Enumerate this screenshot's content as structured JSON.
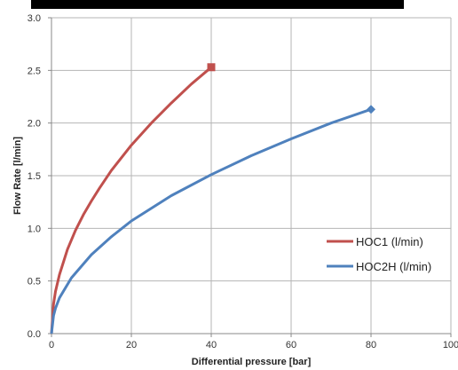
{
  "chart_data": {
    "type": "line",
    "xlabel": "Differential pressure [bar]",
    "ylabel": "Flow Rate [l/min]",
    "xlim": [
      0,
      100
    ],
    "ylim": [
      0,
      3.0
    ],
    "xticks": [
      "0",
      "20",
      "40",
      "60",
      "80",
      "100"
    ],
    "yticks": [
      "0.0",
      "0.5",
      "1.0",
      "1.5",
      "2.0",
      "2.5",
      "3.0"
    ],
    "grid": true,
    "legend_position": "lower-right",
    "series": [
      {
        "name": "HOC1 (l/min)",
        "color": "#c0504d",
        "marker": "square",
        "points": [
          [
            0,
            0
          ],
          [
            0.5,
            0.28
          ],
          [
            1,
            0.4
          ],
          [
            2,
            0.56
          ],
          [
            4,
            0.8
          ],
          [
            6,
            0.98
          ],
          [
            8,
            1.13
          ],
          [
            10,
            1.26
          ],
          [
            12,
            1.38
          ],
          [
            15,
            1.55
          ],
          [
            20,
            1.79
          ],
          [
            25,
            2.0
          ],
          [
            30,
            2.19
          ],
          [
            35,
            2.37
          ],
          [
            40,
            2.53
          ]
        ]
      },
      {
        "name": "HOC2H (l/min)",
        "color": "#4f81bd",
        "marker": "diamond",
        "points": [
          [
            0,
            0
          ],
          [
            0.5,
            0.17
          ],
          [
            1,
            0.24
          ],
          [
            2,
            0.34
          ],
          [
            5,
            0.53
          ],
          [
            10,
            0.75
          ],
          [
            15,
            0.92
          ],
          [
            20,
            1.07
          ],
          [
            30,
            1.31
          ],
          [
            40,
            1.51
          ],
          [
            50,
            1.69
          ],
          [
            60,
            1.85
          ],
          [
            70,
            2.0
          ],
          [
            80,
            2.13
          ]
        ]
      }
    ]
  }
}
